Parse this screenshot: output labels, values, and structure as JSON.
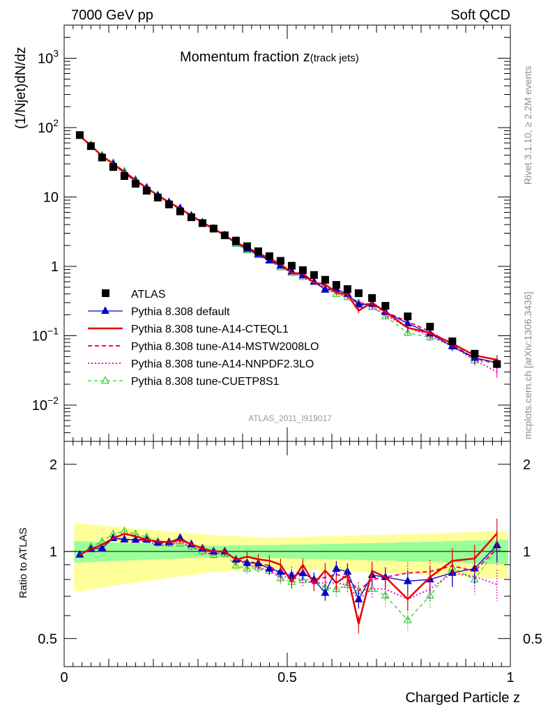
{
  "header": {
    "left": "7000 GeV pp",
    "right": "Soft QCD"
  },
  "side": {
    "rivet": "Rivet 3.1.10, ≥ 2.2M events",
    "mcplots": "mcplots.cern.ch [arXiv:1306.3436]"
  },
  "chart_data": {
    "type": "scatter",
    "title_main": "Momentum fraction z",
    "title_sub": "(track jets)",
    "xlabel": "Charged Particle z",
    "ylabel": "(1/Njet)dN/dz",
    "ratio_ylabel": "Ratio to ATLAS",
    "watermark": "ATLAS_2011_I919017",
    "xlim": [
      0,
      1
    ],
    "ylim": [
      0.003,
      3000
    ],
    "yscale": "log",
    "ratio_ylim": [
      0.4,
      2.4
    ],
    "ratio_yscale": "log",
    "x_ticks": [
      "0",
      "0.5",
      "1"
    ],
    "y_ticks": [
      "10^3",
      "10^2",
      "10",
      "1",
      "10^-1",
      "10^-2"
    ],
    "ratio_ticks": [
      "2",
      "1",
      "0.5"
    ],
    "legend_position": "lower-left",
    "colors": {
      "atlas": "#000000",
      "default": "#0000cc",
      "cteql1": "#e60000",
      "mstw": "#ff0066",
      "nnpdf": "#ff00cc",
      "cuetp8s1": "#33cc33",
      "band_inner": "#99ff99",
      "band_outer": "#ffff99"
    },
    "x": [
      0.035,
      0.06,
      0.085,
      0.11,
      0.135,
      0.16,
      0.185,
      0.21,
      0.235,
      0.26,
      0.285,
      0.31,
      0.335,
      0.36,
      0.385,
      0.41,
      0.435,
      0.46,
      0.485,
      0.51,
      0.535,
      0.56,
      0.585,
      0.61,
      0.635,
      0.66,
      0.69,
      0.72,
      0.77,
      0.82,
      0.87,
      0.92,
      0.97
    ],
    "series": [
      {
        "name": "ATLAS",
        "values": [
          78,
          54,
          37,
          27,
          20,
          15.5,
          12.3,
          9.8,
          7.8,
          6.2,
          5.1,
          4.2,
          3.5,
          2.8,
          2.35,
          1.95,
          1.65,
          1.4,
          1.2,
          1.02,
          0.88,
          0.75,
          0.64,
          0.54,
          0.47,
          0.41,
          0.35,
          0.27,
          0.19,
          0.135,
          0.083,
          0.055,
          0.039
        ]
      },
      {
        "name": "Pythia 8.308 default",
        "values": [
          76,
          55,
          38,
          30,
          22,
          17,
          13.5,
          10.5,
          8.4,
          6.9,
          5.4,
          4.3,
          3.5,
          2.8,
          2.2,
          1.78,
          1.5,
          1.22,
          1.02,
          0.84,
          0.74,
          0.6,
          0.46,
          0.47,
          0.4,
          0.28,
          0.29,
          0.22,
          0.15,
          0.108,
          0.07,
          0.048,
          0.041
        ]
      },
      {
        "name": "Pythia 8.308 tune-A14-CTEQL1",
        "values": [
          76,
          55,
          39,
          30,
          23,
          17.5,
          13.5,
          10.6,
          8.4,
          6.8,
          5.4,
          4.3,
          3.5,
          2.8,
          2.2,
          1.87,
          1.55,
          1.3,
          1.08,
          0.8,
          0.79,
          0.58,
          0.55,
          0.42,
          0.39,
          0.23,
          0.3,
          0.22,
          0.13,
          0.11,
          0.077,
          0.052,
          0.045
        ]
      },
      {
        "name": "Pythia 8.308 tune-A14-MSTW2008LO",
        "values": [
          76,
          55,
          39,
          30,
          22,
          17,
          13.5,
          10.5,
          8.3,
          6.8,
          5.4,
          4.3,
          3.5,
          2.8,
          2.2,
          1.8,
          1.5,
          1.25,
          1.0,
          0.86,
          0.74,
          0.6,
          0.52,
          0.45,
          0.38,
          0.3,
          0.28,
          0.22,
          0.16,
          0.115,
          0.074,
          0.047,
          0.04
        ]
      },
      {
        "name": "Pythia 8.308 tune-A14-NNPDF2.3LO",
        "values": [
          76,
          55,
          39,
          30,
          22,
          17,
          13.3,
          10.3,
          8.2,
          6.7,
          5.3,
          4.2,
          3.4,
          2.8,
          2.2,
          1.75,
          1.45,
          1.2,
          0.98,
          0.83,
          0.7,
          0.58,
          0.5,
          0.42,
          0.36,
          0.28,
          0.26,
          0.2,
          0.13,
          0.1,
          0.07,
          0.045,
          0.03
        ]
      },
      {
        "name": "Pythia 8.308 tune-CUETP8S1",
        "values": [
          76,
          56,
          40,
          31,
          23.5,
          17.8,
          13.8,
          10.6,
          8.3,
          6.6,
          5.3,
          4.2,
          3.4,
          2.75,
          2.1,
          1.7,
          1.45,
          1.2,
          0.97,
          0.8,
          0.7,
          0.6,
          0.48,
          0.4,
          0.36,
          0.3,
          0.26,
          0.19,
          0.11,
          0.095,
          0.073,
          0.044,
          0.04
        ]
      }
    ]
  }
}
